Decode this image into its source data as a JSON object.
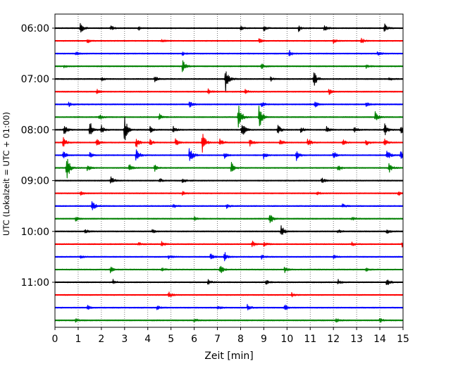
{
  "chart_data": {
    "type": "line",
    "xlabel": "Zeit  [min]",
    "ylabel": "UTC (Lokalzeit = UTC + 01:00)",
    "xlim": [
      0,
      15
    ],
    "x_ticks": [
      "0",
      "1",
      "2",
      "3",
      "4",
      "5",
      "6",
      "7",
      "8",
      "9",
      "10",
      "11",
      "12",
      "13",
      "14",
      "15"
    ],
    "y_ticks": [
      {
        "label": "06:00",
        "trace": 0
      },
      {
        "label": "07:00",
        "trace": 4
      },
      {
        "label": "08:00",
        "trace": 8
      },
      {
        "label": "09:00",
        "trace": 12
      },
      {
        "label": "10:00",
        "trace": 16
      },
      {
        "label": "11:00",
        "trace": 20
      }
    ],
    "grid": "vertical dotted at every minute",
    "colors": [
      "#000000",
      "#ff0000",
      "#0000ff",
      "#008000"
    ],
    "traces": [
      {
        "start": "06:00",
        "color": "#000000",
        "events": [
          [
            1.1,
            0.6
          ],
          [
            2.4,
            0.25
          ],
          [
            3.6,
            0.2
          ],
          [
            8.0,
            0.25
          ],
          [
            9.0,
            0.3
          ],
          [
            10.5,
            0.35
          ],
          [
            11.6,
            0.35
          ],
          [
            14.2,
            0.4
          ]
        ]
      },
      {
        "start": "06:15",
        "color": "#ff0000",
        "events": [
          [
            1.4,
            0.2
          ],
          [
            4.6,
            0.15
          ],
          [
            8.8,
            0.25
          ],
          [
            12.0,
            0.2
          ],
          [
            13.2,
            0.3
          ]
        ]
      },
      {
        "start": "06:30",
        "color": "#0000ff",
        "events": [
          [
            0.9,
            0.2
          ],
          [
            5.5,
            0.2
          ],
          [
            10.1,
            0.3
          ],
          [
            13.9,
            0.25
          ]
        ]
      },
      {
        "start": "06:45",
        "color": "#008000",
        "events": [
          [
            0.4,
            0.15
          ],
          [
            5.5,
            0.6
          ],
          [
            8.9,
            0.25
          ],
          [
            13.4,
            0.2
          ]
        ]
      },
      {
        "start": "07:00",
        "color": "#000000",
        "events": [
          [
            2.0,
            0.2
          ],
          [
            4.3,
            0.25
          ],
          [
            7.35,
            1.3
          ],
          [
            9.3,
            0.2
          ],
          [
            11.15,
            0.85
          ],
          [
            14.4,
            0.2
          ]
        ]
      },
      {
        "start": "07:15",
        "color": "#ff0000",
        "events": [
          [
            1.8,
            0.25
          ],
          [
            6.6,
            0.3
          ],
          [
            8.2,
            0.25
          ],
          [
            11.8,
            0.3
          ]
        ]
      },
      {
        "start": "07:30",
        "color": "#0000ff",
        "events": [
          [
            0.6,
            0.2
          ],
          [
            5.8,
            0.35
          ],
          [
            8.9,
            0.3
          ],
          [
            11.2,
            0.3
          ],
          [
            13.4,
            0.25
          ]
        ]
      },
      {
        "start": "07:45",
        "color": "#008000",
        "events": [
          [
            1.9,
            0.3
          ],
          [
            4.5,
            0.3
          ],
          [
            7.9,
            1.6
          ],
          [
            8.8,
            1.2
          ],
          [
            13.8,
            0.5
          ]
        ]
      },
      {
        "start": "08:00",
        "color": "#000000",
        "events": [
          [
            0.4,
            0.5
          ],
          [
            1.5,
            0.9
          ],
          [
            2.0,
            0.4
          ],
          [
            3.0,
            1.3
          ],
          [
            4.1,
            0.3
          ],
          [
            5.1,
            0.3
          ],
          [
            8.05,
            0.8
          ],
          [
            9.6,
            0.5
          ],
          [
            10.6,
            0.3
          ],
          [
            11.7,
            0.3
          ],
          [
            12.9,
            0.3
          ],
          [
            14.2,
            0.6
          ],
          [
            14.9,
            0.4
          ]
        ]
      },
      {
        "start": "08:15",
        "color": "#ff0000",
        "events": [
          [
            0.35,
            0.55
          ],
          [
            1.8,
            0.35
          ],
          [
            3.5,
            0.5
          ],
          [
            4.1,
            0.3
          ],
          [
            5.2,
            0.35
          ],
          [
            6.35,
            1.1
          ],
          [
            7.1,
            0.35
          ],
          [
            8.4,
            0.35
          ],
          [
            9.7,
            0.35
          ],
          [
            10.9,
            0.4
          ],
          [
            12.4,
            0.3
          ],
          [
            13.4,
            0.35
          ],
          [
            14.2,
            0.4
          ]
        ]
      },
      {
        "start": "08:30",
        "color": "#0000ff",
        "events": [
          [
            0.35,
            0.4
          ],
          [
            1.5,
            0.35
          ],
          [
            3.5,
            0.75
          ],
          [
            5.8,
            0.9
          ],
          [
            7.3,
            0.3
          ],
          [
            9.0,
            0.35
          ],
          [
            10.4,
            0.55
          ],
          [
            12.0,
            0.4
          ],
          [
            14.3,
            0.65
          ],
          [
            14.9,
            0.4
          ]
        ]
      },
      {
        "start": "08:45",
        "color": "#008000",
        "events": [
          [
            0.5,
            1.5
          ],
          [
            1.4,
            0.3
          ],
          [
            3.2,
            0.35
          ],
          [
            4.3,
            0.3
          ],
          [
            7.6,
            0.6
          ],
          [
            12.2,
            0.35
          ],
          [
            14.4,
            0.5
          ]
        ]
      },
      {
        "start": "09:00",
        "color": "#000000",
        "events": [
          [
            2.4,
            0.45
          ],
          [
            4.5,
            0.25
          ],
          [
            5.5,
            0.25
          ],
          [
            11.5,
            0.3
          ]
        ]
      },
      {
        "start": "09:15",
        "color": "#ff0000",
        "events": [
          [
            1.1,
            0.2
          ],
          [
            5.5,
            0.2
          ],
          [
            11.3,
            0.2
          ],
          [
            14.8,
            0.2
          ]
        ]
      },
      {
        "start": "09:30",
        "color": "#0000ff",
        "events": [
          [
            1.6,
            0.55
          ],
          [
            5.1,
            0.2
          ],
          [
            7.4,
            0.2
          ],
          [
            12.4,
            0.2
          ]
        ]
      },
      {
        "start": "09:45",
        "color": "#008000",
        "events": [
          [
            0.9,
            0.25
          ],
          [
            6.0,
            0.2
          ],
          [
            9.25,
            0.6
          ],
          [
            12.8,
            0.2
          ]
        ]
      },
      {
        "start": "10:00",
        "color": "#000000",
        "events": [
          [
            1.3,
            0.25
          ],
          [
            4.2,
            0.2
          ],
          [
            9.75,
            0.65
          ],
          [
            12.2,
            0.2
          ],
          [
            14.3,
            0.25
          ]
        ]
      },
      {
        "start": "10:15",
        "color": "#ff0000",
        "events": [
          [
            3.6,
            0.2
          ],
          [
            4.6,
            0.25
          ],
          [
            8.5,
            0.3
          ],
          [
            9.0,
            0.2
          ],
          [
            12.8,
            0.2
          ],
          [
            14.95,
            0.3
          ]
        ]
      },
      {
        "start": "10:30",
        "color": "#0000ff",
        "events": [
          [
            1.1,
            0.2
          ],
          [
            4.9,
            0.2
          ],
          [
            6.7,
            0.35
          ],
          [
            7.3,
            0.5
          ],
          [
            8.9,
            0.2
          ],
          [
            12.0,
            0.2
          ]
        ]
      },
      {
        "start": "10:45",
        "color": "#008000",
        "events": [
          [
            2.4,
            0.35
          ],
          [
            4.6,
            0.2
          ],
          [
            7.1,
            0.55
          ],
          [
            9.9,
            0.3
          ],
          [
            13.4,
            0.2
          ]
        ]
      },
      {
        "start": "11:00",
        "color": "#000000",
        "events": [
          [
            2.5,
            0.25
          ],
          [
            6.6,
            0.25
          ],
          [
            9.1,
            0.2
          ],
          [
            12.2,
            0.25
          ],
          [
            14.3,
            0.4
          ]
        ]
      },
      {
        "start": "11:15",
        "color": "#ff0000",
        "events": [
          [
            4.9,
            0.3
          ],
          [
            10.2,
            0.2
          ]
        ]
      },
      {
        "start": "11:30",
        "color": "#0000ff",
        "events": [
          [
            1.4,
            0.2
          ],
          [
            4.4,
            0.2
          ],
          [
            7.0,
            0.2
          ],
          [
            8.3,
            0.35
          ],
          [
            9.9,
            0.3
          ]
        ]
      },
      {
        "start": "11:45",
        "color": "#008000",
        "events": [
          [
            0.9,
            0.2
          ],
          [
            6.0,
            0.2
          ],
          [
            12.1,
            0.25
          ],
          [
            14.0,
            0.2
          ]
        ]
      }
    ]
  }
}
